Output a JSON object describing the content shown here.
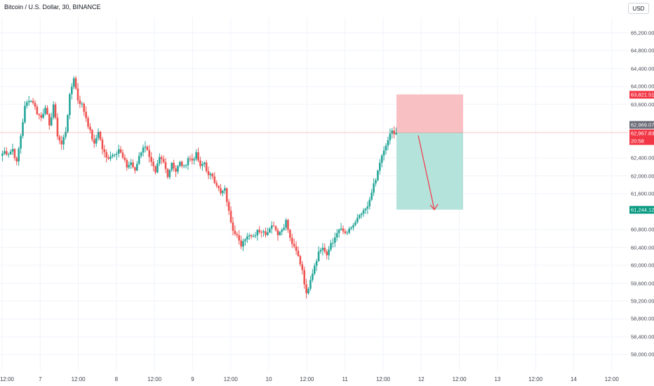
{
  "header": {
    "symbol_title": "Bitcoin / U.S. Dollar, 30, BINANCE",
    "currency_button": "USD"
  },
  "price_axis": {
    "ticks": [
      "65,200.00",
      "64,800.00",
      "64,400.00",
      "64,000.00",
      "63,600.00",
      "62,400.00",
      "62,000.00",
      "61,600.00",
      "60,800.00",
      "60,400.00",
      "60,000.00",
      "59,600.00",
      "59,200.00",
      "58,800.00",
      "58,400.00",
      "58,000.00"
    ],
    "tick_values": [
      65200,
      64800,
      64400,
      64000,
      63600,
      62400,
      62000,
      61600,
      60800,
      60400,
      60000,
      59600,
      59200,
      58800,
      58400,
      58000
    ],
    "range": [
      57850,
      65400
    ]
  },
  "time_axis": {
    "labels": [
      "12:00",
      "7",
      "12:00",
      "8",
      "12:00",
      "9",
      "12:00",
      "10",
      "12:00",
      "11",
      "12:00",
      "12",
      "12:00",
      "13",
      "12:00",
      "14",
      "12:00"
    ]
  },
  "badges": {
    "stop_price": "63,821.51",
    "last_price": "62,969.07",
    "current_price": "62,967.83",
    "countdown": "20:58",
    "target_price": "61,244.12"
  },
  "badge_values": {
    "stop": 63821.51,
    "last": 62969.07,
    "current": 62967.83,
    "target": 61244.12
  },
  "colors": {
    "up": "#26a69a",
    "down": "#ef5350",
    "stop_badge": "#f23645",
    "target_badge": "#089981",
    "last_badge": "#6a6d78",
    "risk_zone": "#f9c0c4",
    "reward_zone": "#b4e3dc",
    "grid": "#f0f3fa",
    "arrow": "#f23645"
  },
  "chart_data": {
    "type": "candlestick",
    "title": "Bitcoin / U.S. Dollar, 30, BINANCE",
    "x_ticks": [
      "12:00",
      "7",
      "12:00",
      "8",
      "12:00",
      "9",
      "12:00",
      "10",
      "12:00",
      "11",
      "12:00",
      "12",
      "12:00",
      "13",
      "12:00",
      "14",
      "12:00"
    ],
    "y_range": [
      57850,
      65400
    ],
    "close_path": [
      62450,
      62550,
      62500,
      62600,
      62300,
      62900,
      63550,
      63700,
      63650,
      63400,
      63300,
      63550,
      63100,
      63600,
      62900,
      62700,
      63000,
      63800,
      64200,
      63700,
      63600,
      63300,
      63000,
      62700,
      63000,
      62600,
      62400,
      62450,
      62500,
      62600,
      62400,
      62200,
      62300,
      62100,
      62450,
      62650,
      62600,
      62300,
      62050,
      62400,
      62300,
      62000,
      62300,
      62100,
      62300,
      62200,
      62400,
      62350,
      62500,
      62200,
      62300,
      62000,
      62000,
      61800,
      61600,
      61700,
      61200,
      60800,
      60700,
      60400,
      60600,
      60700,
      60650,
      60800,
      60750,
      60700,
      60850,
      60900,
      60700,
      60800,
      61000,
      60600,
      60400,
      60200,
      59900,
      59350,
      59700,
      60000,
      60300,
      60400,
      60200,
      60500,
      60600,
      60800,
      60750,
      60700,
      60850,
      60950,
      61100,
      61200,
      61300,
      61650,
      61900,
      62300,
      62550,
      62800,
      63000,
      62968
    ],
    "position": {
      "type": "short",
      "entry": 62968.5,
      "stop": 63821.51,
      "target": 61244.12
    }
  }
}
